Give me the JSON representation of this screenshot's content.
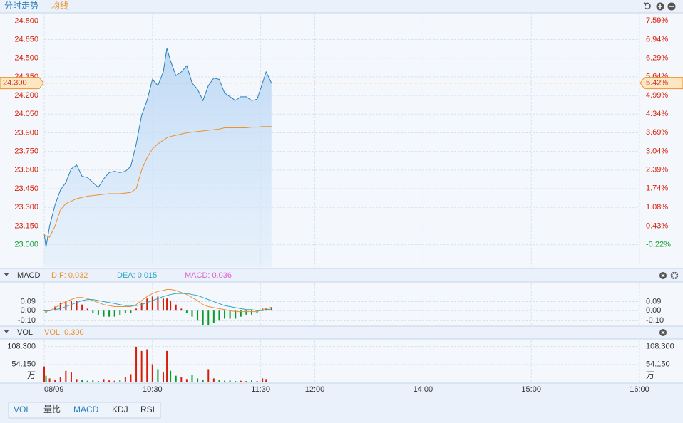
{
  "header": {
    "tabs": [
      "分时走势",
      "均线"
    ]
  },
  "chart_data": [
    {
      "type": "line",
      "x": [
        0,
        1,
        3,
        6,
        9,
        12,
        15,
        18,
        21,
        24,
        27,
        30,
        33,
        36,
        39,
        42,
        45,
        48,
        51,
        54,
        57,
        60,
        63,
        66,
        68,
        70,
        73,
        76,
        79,
        82,
        85,
        88,
        91,
        94,
        97,
        100,
        103,
        106,
        109,
        112,
        115,
        118,
        121,
        123,
        126
      ],
      "xlim": [
        0,
        330
      ],
      "xticks": [
        {
          "value": 0,
          "label": "08/09"
        },
        {
          "value": 60,
          "label": "10:30"
        },
        {
          "value": 120,
          "label": "11:30"
        },
        {
          "value": 150,
          "label": "12:00"
        },
        {
          "value": 210,
          "label": "14:00"
        },
        {
          "value": 270,
          "label": "15:00"
        },
        {
          "value": 330,
          "label": "16:00"
        }
      ],
      "ylim": [
        22.82,
        24.865
      ],
      "yticks": [
        {
          "value": 24.8,
          "label": "24.800"
        },
        {
          "value": 24.65,
          "label": "24.650"
        },
        {
          "value": 24.5,
          "label": "24.500"
        },
        {
          "value": 24.35,
          "label": "24.350"
        },
        {
          "value": 24.2,
          "label": "24.200"
        },
        {
          "value": 24.05,
          "label": "24.050"
        },
        {
          "value": 23.9,
          "label": "23.900"
        },
        {
          "value": 23.75,
          "label": "23.750"
        },
        {
          "value": 23.6,
          "label": "23.600"
        },
        {
          "value": 23.45,
          "label": "23.450"
        },
        {
          "value": 23.3,
          "label": "23.300"
        },
        {
          "value": 23.15,
          "label": "23.150"
        },
        {
          "value": 23.0,
          "label": "23.000"
        }
      ],
      "y2lim": [
        -1.0,
        7.87
      ],
      "y2ticks": [
        {
          "value": 7.59,
          "label": "7.59%"
        },
        {
          "value": 6.94,
          "label": "6.94%"
        },
        {
          "value": 6.29,
          "label": "6.29%"
        },
        {
          "value": 5.64,
          "label": "5.64%"
        },
        {
          "value": 4.99,
          "label": "4.99%"
        },
        {
          "value": 4.34,
          "label": "4.34%"
        },
        {
          "value": 3.69,
          "label": "3.69%"
        },
        {
          "value": 3.04,
          "label": "3.04%"
        },
        {
          "value": 2.39,
          "label": "2.39%"
        },
        {
          "value": 1.74,
          "label": "1.74%"
        },
        {
          "value": 1.08,
          "label": "1.08%"
        },
        {
          "value": 0.43,
          "label": "0.43%"
        },
        {
          "value": -0.22,
          "label": "-0.22%"
        }
      ],
      "up_color": "#d81e06",
      "down_color": "#0a9a2a",
      "grid": true,
      "marker": {
        "value": 24.3,
        "label": "24.300",
        "y2_value": 5.42,
        "y2_label": "5.42%",
        "color": "#f0902a"
      },
      "series": [
        {
          "color": "#2a7fb8",
          "values": [
            23.09,
            22.98,
            23.15,
            23.32,
            23.44,
            23.5,
            23.61,
            23.64,
            23.55,
            23.54,
            23.5,
            23.46,
            23.53,
            23.58,
            23.59,
            23.58,
            23.59,
            23.63,
            23.81,
            24.04,
            24.16,
            24.33,
            24.28,
            24.39,
            24.58,
            24.48,
            24.36,
            24.39,
            24.44,
            24.3,
            24.25,
            24.16,
            24.28,
            24.34,
            24.33,
            24.22,
            24.19,
            24.16,
            24.19,
            24.19,
            24.16,
            24.17,
            24.3,
            24.39,
            24.3
          ]
        },
        {
          "name": "均线",
          "color": "#f0902a",
          "values": [
            23.08,
            23.07,
            23.06,
            23.15,
            23.28,
            23.33,
            23.35,
            23.37,
            23.38,
            23.39,
            23.395,
            23.4,
            23.405,
            23.41,
            23.41,
            23.41,
            23.415,
            23.42,
            23.45,
            23.6,
            23.7,
            23.77,
            23.81,
            23.84,
            23.86,
            23.87,
            23.88,
            23.89,
            23.9,
            23.905,
            23.91,
            23.915,
            23.92,
            23.925,
            23.93,
            23.94,
            23.94,
            23.94,
            23.94,
            23.94,
            23.945,
            23.945,
            23.95,
            23.95,
            23.95
          ]
        }
      ]
    },
    {
      "type": "macd",
      "title": "MACD",
      "ylim": [
        -0.14,
        0.27
      ],
      "yticks": [
        0.09,
        {
          "value": 0,
          "label": "0.00"
        },
        {
          "value": -0.1,
          "label": "-0.10"
        }
      ],
      "series": [
        {
          "name": "DIF",
          "label": "DIF: 0.032",
          "kind": "line",
          "color": "#f0902a",
          "values": [
            0,
            -0.01,
            0,
            0.03,
            0.06,
            0.09,
            0.11,
            0.13,
            0.13,
            0.12,
            0.1,
            0.08,
            0.06,
            0.05,
            0.04,
            0.04,
            0.04,
            0.04,
            0.06,
            0.1,
            0.14,
            0.17,
            0.19,
            0.2,
            0.21,
            0.21,
            0.2,
            0.18,
            0.16,
            0.13,
            0.1,
            0.06,
            0.04,
            0.03,
            0.02,
            0.01,
            0,
            -0.01,
            -0.01,
            -0.01,
            -0.01,
            -0.01,
            0.01,
            0.02,
            0.032
          ]
        },
        {
          "name": "DEA",
          "label": "DEA: 0.015",
          "kind": "line",
          "color": "#2aa7c8",
          "values": [
            0,
            0,
            0,
            0.01,
            0.02,
            0.04,
            0.06,
            0.08,
            0.1,
            0.11,
            0.11,
            0.1,
            0.09,
            0.08,
            0.07,
            0.06,
            0.05,
            0.05,
            0.05,
            0.06,
            0.08,
            0.1,
            0.12,
            0.14,
            0.15,
            0.16,
            0.17,
            0.17,
            0.17,
            0.16,
            0.15,
            0.13,
            0.11,
            0.09,
            0.07,
            0.05,
            0.04,
            0.03,
            0.02,
            0.01,
            0.01,
            0,
            0,
            0.01,
            0.015
          ]
        },
        {
          "name": "MACD",
          "label": "MACD: 0.036",
          "kind": "bar",
          "color": "#e060d0",
          "values": [
            0,
            -0.02,
            0,
            0.04,
            0.08,
            0.1,
            0.1,
            0.1,
            0.06,
            0.02,
            -0.02,
            -0.04,
            -0.06,
            -0.06,
            -0.06,
            -0.04,
            -0.02,
            -0.02,
            0.02,
            0.08,
            0.12,
            0.14,
            0.14,
            0.12,
            0.12,
            0.1,
            0.06,
            0.02,
            -0.02,
            -0.06,
            -0.1,
            -0.14,
            -0.14,
            -0.12,
            -0.1,
            -0.08,
            -0.08,
            -0.08,
            -0.06,
            -0.04,
            -0.04,
            -0.02,
            0.02,
            0.02,
            0.036
          ]
        }
      ]
    },
    {
      "type": "bar",
      "title": "VOL",
      "unit": "万",
      "ylim": [
        0,
        127
      ],
      "yticks": [
        {
          "value": 54.15,
          "label": "54.150"
        },
        {
          "value": 108.3,
          "label": "108.300"
        }
      ],
      "series": [
        {
          "name": "VOL",
          "label": "VOL: 0.300",
          "color": "#f0902a",
          "values": [
            48,
            20,
            12,
            8,
            15,
            35,
            30,
            10,
            8,
            5,
            6,
            4,
            10,
            6,
            5,
            8,
            15,
            25,
            108,
            95,
            100,
            55,
            40,
            30,
            95,
            35,
            20,
            15,
            10,
            22,
            12,
            8,
            40,
            12,
            8,
            5,
            6,
            4,
            5,
            4,
            6,
            4,
            12,
            10,
            0.3
          ]
        }
      ]
    }
  ],
  "footer_tabs": [
    "VOL",
    "量比",
    "MACD",
    "KDJ",
    "RSI"
  ]
}
